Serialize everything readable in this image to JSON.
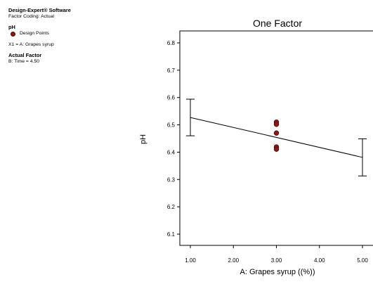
{
  "sidebar": {
    "software": "Design-Expert® Software",
    "coding": "Factor Coding: Actual",
    "response": "pH",
    "legend_label": "Design Points",
    "factor_def": "X1 = A: Grapes syrup",
    "actual_factor_title": "Actual Factor",
    "actual_factor_value": "B: Time = 4.50"
  },
  "colors": {
    "point": "#8b1a1a",
    "line": "#000000"
  },
  "chart_data": {
    "type": "line",
    "title": "One Factor",
    "xlabel": "A: Grapes syrup ((%))",
    "ylabel": "pH",
    "xlim": [
      0.75,
      5.25
    ],
    "ylim": [
      6.05,
      6.85
    ],
    "xticks": [
      "1.00",
      "2.00",
      "3.00",
      "4.00",
      "5.00"
    ],
    "xtick_values": [
      1,
      2,
      3,
      4,
      5
    ],
    "yticks": [
      "6.1",
      "6.2",
      "6.3",
      "6.4",
      "6.5",
      "6.6",
      "6.7",
      "6.8"
    ],
    "ytick_values": [
      6.1,
      6.2,
      6.3,
      6.4,
      6.5,
      6.6,
      6.7,
      6.8
    ],
    "series": [
      {
        "x": [
          1,
          5
        ],
        "y": [
          6.527,
          6.381
        ]
      }
    ],
    "error_bars": [
      {
        "x": 1,
        "low": 6.46,
        "high": 6.594
      },
      {
        "x": 5,
        "low": 6.313,
        "high": 6.449
      }
    ],
    "design_points": [
      {
        "x": 3,
        "y": 6.51
      },
      {
        "x": 3,
        "y": 6.502
      },
      {
        "x": 3,
        "y": 6.47
      },
      {
        "x": 3,
        "y": 6.419
      },
      {
        "x": 3,
        "y": 6.411
      }
    ]
  }
}
